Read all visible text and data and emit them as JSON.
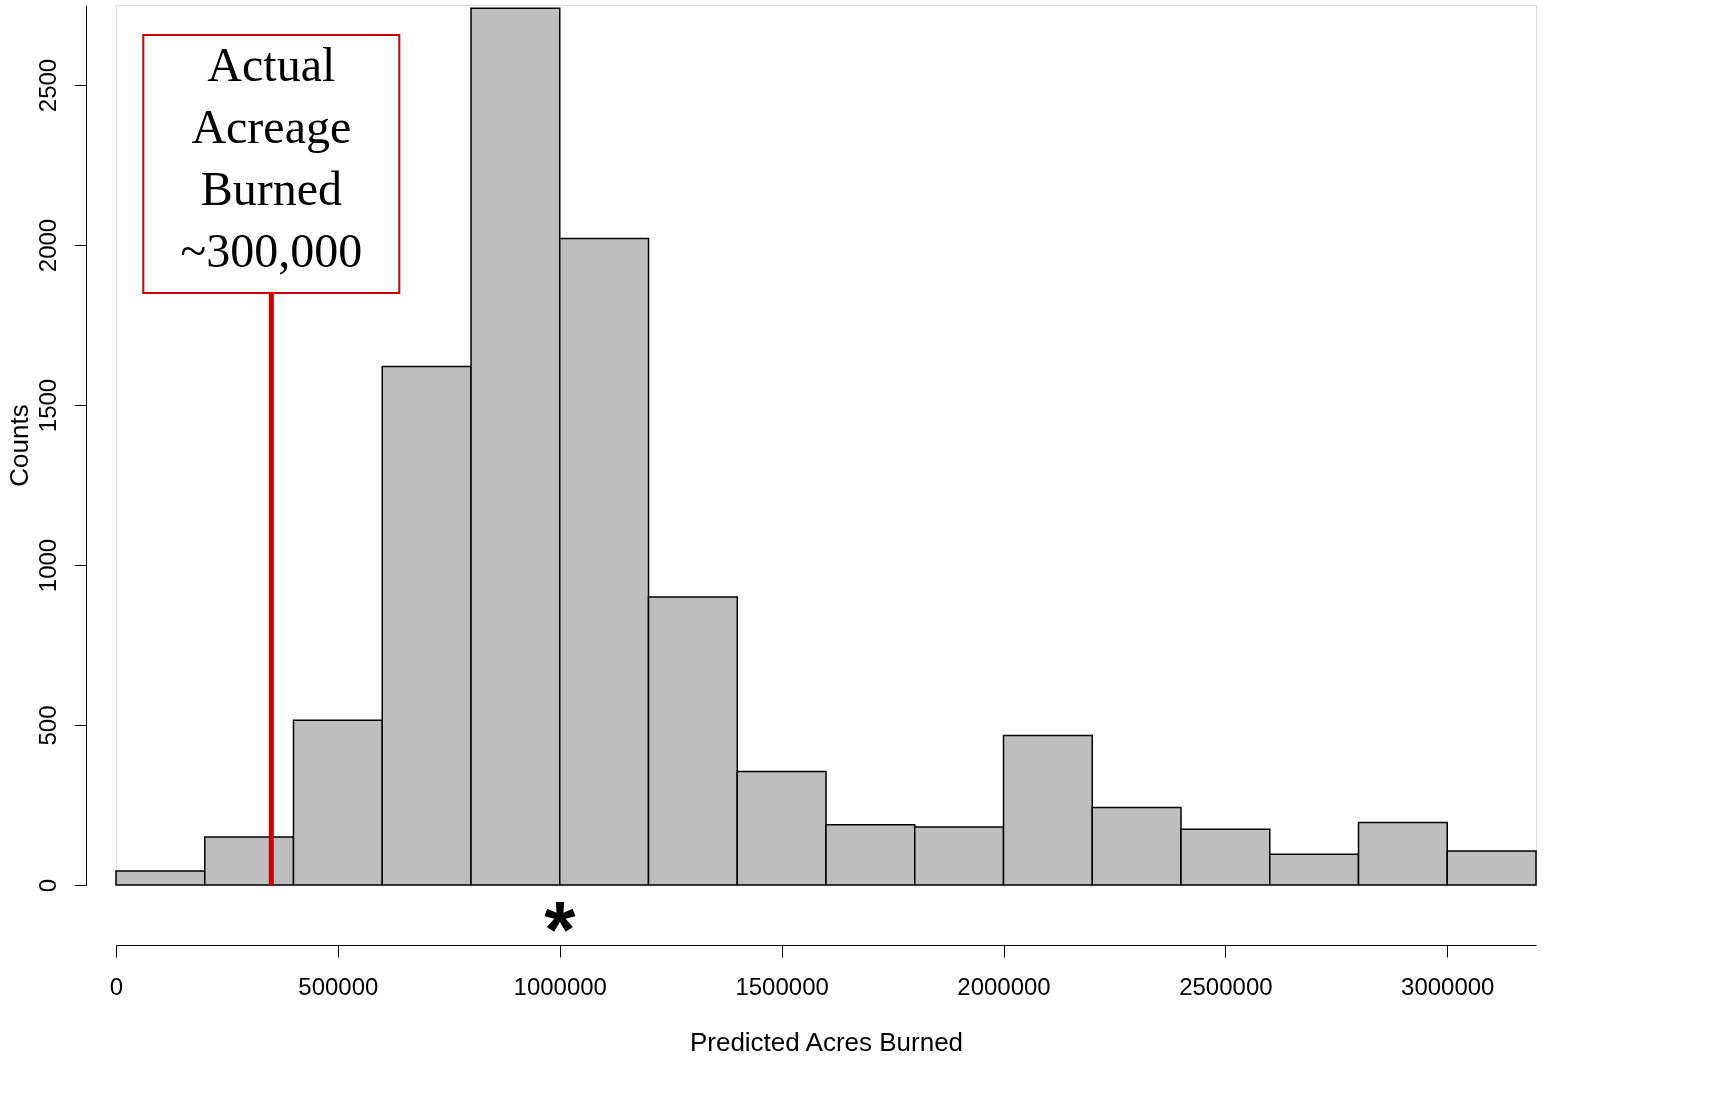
{
  "chart_data": {
    "type": "histogram",
    "xlabel": "Predicted Acres Burned",
    "ylabel": "Counts",
    "bins": [
      0,
      200000,
      400000,
      600000,
      800000,
      1000000,
      1200000,
      1400000,
      1600000,
      1800000,
      2000000,
      2200000,
      2400000,
      2600000,
      2800000,
      3000000,
      3200000
    ],
    "values": [
      44,
      150,
      515,
      1620,
      2740,
      2020,
      900,
      355,
      188,
      181,
      467,
      242,
      174,
      96,
      195,
      106
    ],
    "color": "#bebebe",
    "xlim": [
      0,
      3200000
    ],
    "xticks": [
      0,
      500000,
      1000000,
      1500000,
      2000000,
      2500000,
      3000000
    ],
    "ylim": [
      0,
      2750
    ],
    "yticks": [
      0,
      500,
      1000,
      1500,
      2000,
      2500
    ],
    "grid": false,
    "ref_lines": [
      {
        "axis": "x",
        "value": 350000,
        "label": "Actual\nAcreage\nBurned\n~300,000",
        "color": "#cc0000"
      }
    ],
    "annotations": [
      {
        "text": "*",
        "x": 1000000,
        "y": 0
      }
    ]
  }
}
